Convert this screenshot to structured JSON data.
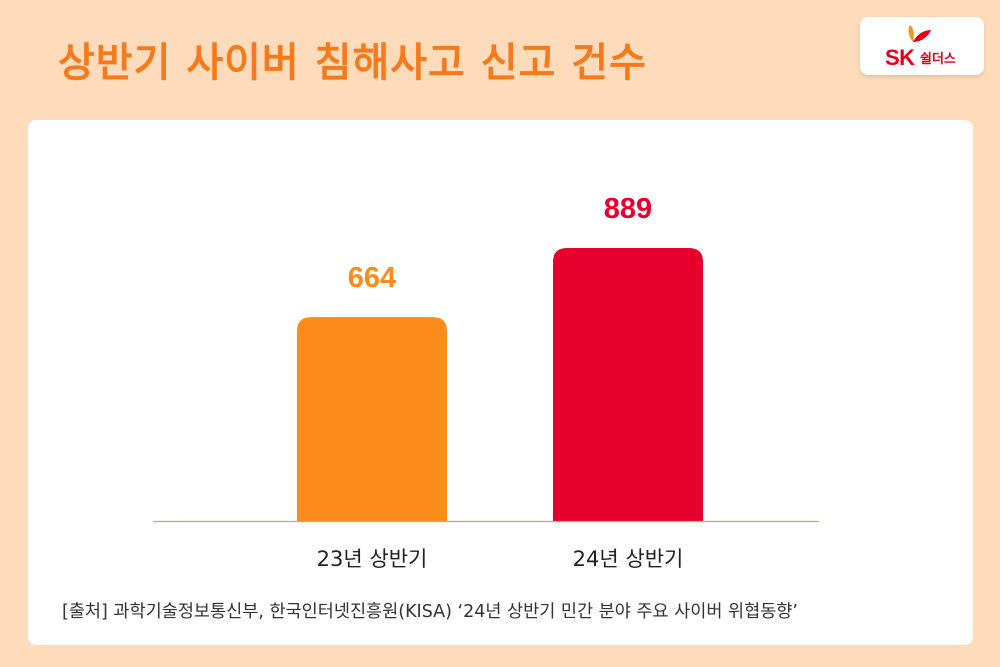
{
  "header": {
    "title": "상반기 사이버 침해사고 신고 건수"
  },
  "logo": {
    "brand": "SK",
    "sub": "쉴더스"
  },
  "colors": {
    "background": "#fddbbb",
    "title": "#f47a1c",
    "bar_2023": "#fb8c1c",
    "bar_2024": "#e6002d",
    "axis": "#c9a86a"
  },
  "chart_data": {
    "type": "bar",
    "categories": [
      "23년 상반기",
      "24년 상반기"
    ],
    "values": [
      664,
      889
    ],
    "data_labels": [
      "664",
      "889"
    ],
    "colors": [
      "#fb8c1c",
      "#e6002d"
    ],
    "ylim": [
      0,
      889
    ],
    "grid": false,
    "legend": "none"
  },
  "footer": {
    "source": "[출처] 과학기술정보통신부, 한국인터넷진흥원(KISA) ‘24년 상반기 민간 분야 주요 사이버 위협동향’"
  }
}
